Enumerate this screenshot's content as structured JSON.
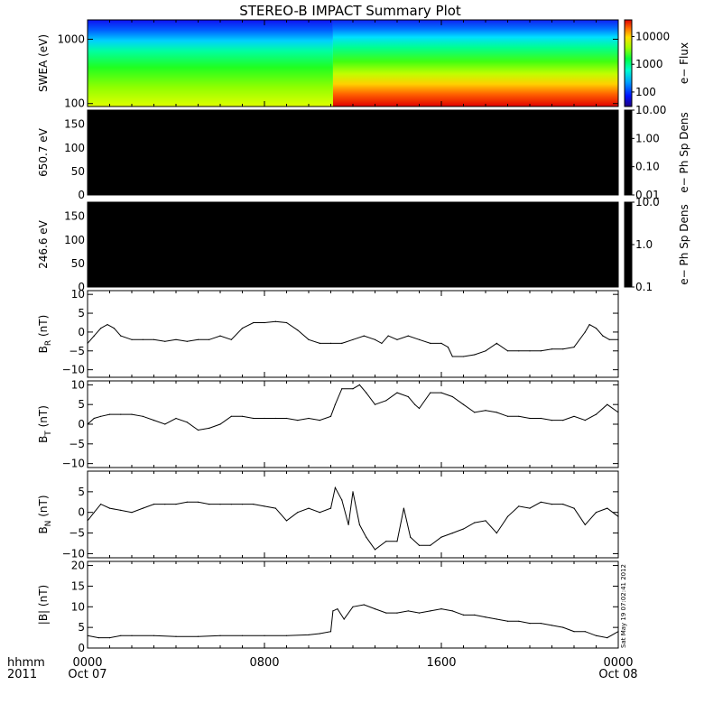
{
  "title": "STEREO-B IMPACT Summary Plot",
  "time_axis": {
    "label_row1": "hhmm",
    "label_row2": "2011",
    "ticks": [
      {
        "hour": 0,
        "top": "0000",
        "bottom": "Oct 07"
      },
      {
        "hour": 8,
        "top": "0800",
        "bottom": ""
      },
      {
        "hour": 16,
        "top": "1600",
        "bottom": ""
      },
      {
        "hour": 24,
        "top": "0000",
        "bottom": "Oct 08"
      }
    ],
    "range_hours": [
      0,
      24
    ]
  },
  "timestamp": "Sat May 19 07:02:41 2012",
  "chart_data": [
    {
      "type": "heatmap",
      "ylabel": "SWEA (eV)",
      "ylog": true,
      "ylim": [
        90,
        2000
      ],
      "yticks": [
        {
          "v": 100,
          "label": "100"
        },
        {
          "v": 1000,
          "label": "1000"
        }
      ],
      "colorbar": {
        "label": "e− Flux",
        "log": true,
        "range": [
          30,
          40000
        ],
        "ticks": [
          {
            "v": 100,
            "label": "100"
          },
          {
            "v": 1000,
            "label": "1000"
          },
          {
            "v": 10000,
            "label": "10000"
          }
        ]
      },
      "description_regimes": [
        {
          "from_hour": 0,
          "to_hour": 11.1,
          "low_energy_flux": 3000
        },
        {
          "from_hour": 11.1,
          "to_hour": 24,
          "low_energy_flux": 30000
        }
      ]
    },
    {
      "type": "heatmap",
      "ylabel": "650.7 eV",
      "ylim": [
        0,
        180
      ],
      "yticks": [
        {
          "v": 0,
          "label": "0"
        },
        {
          "v": 50,
          "label": "50"
        },
        {
          "v": 100,
          "label": "100"
        },
        {
          "v": 150,
          "label": "150"
        }
      ],
      "fill_color": "#000000",
      "colorbar": {
        "label": "e− Ph Sp Dens",
        "log": true,
        "range": [
          0.01,
          10
        ],
        "ticks": [
          {
            "v": 0.01,
            "label": "0.01"
          },
          {
            "v": 0.1,
            "label": "0.10"
          },
          {
            "v": 1,
            "label": "1.00"
          },
          {
            "v": 10,
            "label": "10.00"
          }
        ]
      }
    },
    {
      "type": "heatmap",
      "ylabel": "246.6 eV",
      "ylim": [
        0,
        180
      ],
      "yticks": [
        {
          "v": 0,
          "label": "0"
        },
        {
          "v": 50,
          "label": "50"
        },
        {
          "v": 100,
          "label": "100"
        },
        {
          "v": 150,
          "label": "150"
        }
      ],
      "fill_color": "#000000",
      "colorbar": {
        "label": "e− Ph Sp Dens",
        "log": true,
        "range": [
          0.1,
          10
        ],
        "ticks": [
          {
            "v": 0.1,
            "label": "0.1"
          },
          {
            "v": 1,
            "label": "1.0"
          },
          {
            "v": 10,
            "label": "10.0"
          }
        ]
      }
    },
    {
      "type": "line",
      "ylabel": "B",
      "ylabel_sub": "R",
      "ylabel_unit": "(nT)",
      "ylim": [
        -12,
        11
      ],
      "yticks": [
        {
          "v": -10,
          "label": "−10"
        },
        {
          "v": -5,
          "label": "−5"
        },
        {
          "v": 0,
          "label": "0"
        },
        {
          "v": 5,
          "label": "5"
        },
        {
          "v": 10,
          "label": "10"
        }
      ],
      "x": [
        0,
        0.3,
        0.6,
        0.9,
        1.2,
        1.5,
        2,
        2.5,
        3,
        3.5,
        4,
        4.5,
        5,
        5.5,
        6,
        6.5,
        7,
        7.5,
        8,
        8.5,
        9,
        9.5,
        10,
        10.5,
        11,
        11.5,
        12,
        12.5,
        13,
        13.3,
        13.6,
        14,
        14.5,
        15,
        15.5,
        16,
        16.3,
        16.5,
        17,
        17.5,
        18,
        18.5,
        19,
        19.5,
        20,
        20.5,
        21,
        21.5,
        22,
        22.5,
        22.7,
        23,
        23.3,
        23.6,
        24
      ],
      "values": [
        -3,
        -1,
        1,
        2,
        1,
        -1,
        -2,
        -2,
        -2,
        -2.5,
        -2,
        -2.5,
        -2,
        -2,
        -1,
        -2,
        1,
        2.5,
        2.5,
        2.8,
        2.5,
        0.5,
        -2,
        -3,
        -3,
        -3,
        -2,
        -1,
        -2,
        -3,
        -1,
        -2,
        -1,
        -2,
        -3,
        -3,
        -4,
        -6.5,
        -6.5,
        -6,
        -5,
        -3,
        -5,
        -5,
        -5,
        -5,
        -4.5,
        -4.5,
        -4,
        0,
        2,
        1,
        -1,
        -2,
        -2
      ]
    },
    {
      "type": "line",
      "ylabel": "B",
      "ylabel_sub": "T",
      "ylabel_unit": "(nT)",
      "ylim": [
        -11,
        11
      ],
      "yticks": [
        {
          "v": -10,
          "label": "−10"
        },
        {
          "v": -5,
          "label": "−5"
        },
        {
          "v": 0,
          "label": "0"
        },
        {
          "v": 5,
          "label": "5"
        },
        {
          "v": 10,
          "label": "10"
        }
      ],
      "x": [
        0,
        0.3,
        0.6,
        1,
        1.5,
        2,
        2.5,
        3,
        3.5,
        4,
        4.5,
        5,
        5.5,
        6,
        6.5,
        7,
        7.5,
        8,
        8.5,
        9,
        9.5,
        10,
        10.5,
        11,
        11.2,
        11.5,
        12,
        12.3,
        12.6,
        13,
        13.5,
        14,
        14.5,
        14.8,
        15,
        15.5,
        16,
        16.5,
        17,
        17.5,
        18,
        18.5,
        19,
        19.5,
        20,
        20.5,
        21,
        21.5,
        22,
        22.5,
        23,
        23.5,
        24
      ],
      "values": [
        0,
        1.5,
        2,
        2.5,
        2.5,
        2.5,
        2,
        1,
        0,
        1.5,
        0.5,
        -1.5,
        -1,
        0,
        2,
        2,
        1.5,
        1.5,
        1.5,
        1.5,
        1,
        1.5,
        1,
        2,
        5,
        9,
        9,
        10,
        8,
        5,
        6,
        8,
        7,
        5,
        4,
        8,
        8,
        7,
        5,
        3,
        3.5,
        3,
        2,
        2,
        1.5,
        1.5,
        1,
        1,
        2,
        1,
        2.5,
        5,
        3
      ]
    },
    {
      "type": "line",
      "ylabel": "B",
      "ylabel_sub": "N",
      "ylabel_unit": "(nT)",
      "ylim": [
        -11,
        10
      ],
      "yticks": [
        {
          "v": -10,
          "label": "−10"
        },
        {
          "v": -5,
          "label": "−5"
        },
        {
          "v": 0,
          "label": "0"
        },
        {
          "v": 5,
          "label": "5"
        }
      ],
      "x": [
        0,
        0.3,
        0.6,
        1,
        1.5,
        2,
        2.5,
        3,
        3.5,
        4,
        4.5,
        5,
        5.5,
        6,
        6.5,
        7,
        7.5,
        8,
        8.5,
        9,
        9.5,
        10,
        10.5,
        11,
        11.2,
        11.5,
        11.8,
        12,
        12.3,
        12.6,
        13,
        13.5,
        14,
        14.3,
        14.6,
        15,
        15.5,
        16,
        16.5,
        17,
        17.5,
        18,
        18.5,
        19,
        19.5,
        20,
        20.5,
        21,
        21.5,
        22,
        22.5,
        23,
        23.5,
        24
      ],
      "values": [
        -2,
        0,
        2,
        1,
        0.5,
        0,
        1,
        2,
        2,
        2,
        2.5,
        2.5,
        2,
        2,
        2,
        2,
        2,
        1.5,
        1,
        -2,
        0,
        1,
        0,
        1,
        6,
        3,
        -3,
        5,
        -3,
        -6,
        -9,
        -7,
        -7,
        1,
        -6,
        -8,
        -8,
        -6,
        -5,
        -4,
        -2.5,
        -2,
        -5,
        -1,
        1.5,
        1,
        2.5,
        2,
        2,
        1,
        -3,
        0,
        1,
        -1
      ]
    },
    {
      "type": "line",
      "ylabel": "|B|",
      "ylabel_unit": "(nT)",
      "ylim": [
        0,
        21
      ],
      "yticks": [
        {
          "v": 0,
          "label": "0"
        },
        {
          "v": 5,
          "label": "5"
        },
        {
          "v": 10,
          "label": "10"
        },
        {
          "v": 15,
          "label": "15"
        },
        {
          "v": 20,
          "label": "20"
        }
      ],
      "x": [
        0,
        0.5,
        1,
        1.5,
        2,
        3,
        4,
        5,
        6,
        7,
        8,
        9,
        10,
        10.5,
        11,
        11.1,
        11.3,
        11.6,
        12,
        12.5,
        13,
        13.5,
        14,
        14.5,
        15,
        15.5,
        16,
        16.5,
        17,
        17.5,
        18,
        18.5,
        19,
        19.5,
        20,
        20.5,
        21,
        21.5,
        22,
        22.5,
        23,
        23.5,
        24
      ],
      "values": [
        3,
        2.5,
        2.5,
        3,
        3,
        3,
        2.8,
        2.8,
        3,
        3,
        3,
        3,
        3.2,
        3.5,
        4,
        9,
        9.5,
        7,
        10,
        10.5,
        9.5,
        8.5,
        8.5,
        9,
        8.5,
        9,
        9.5,
        9,
        8,
        8,
        7.5,
        7,
        6.5,
        6.5,
        6,
        6,
        5.5,
        5,
        4,
        4,
        3,
        2.5,
        4
      ]
    }
  ]
}
